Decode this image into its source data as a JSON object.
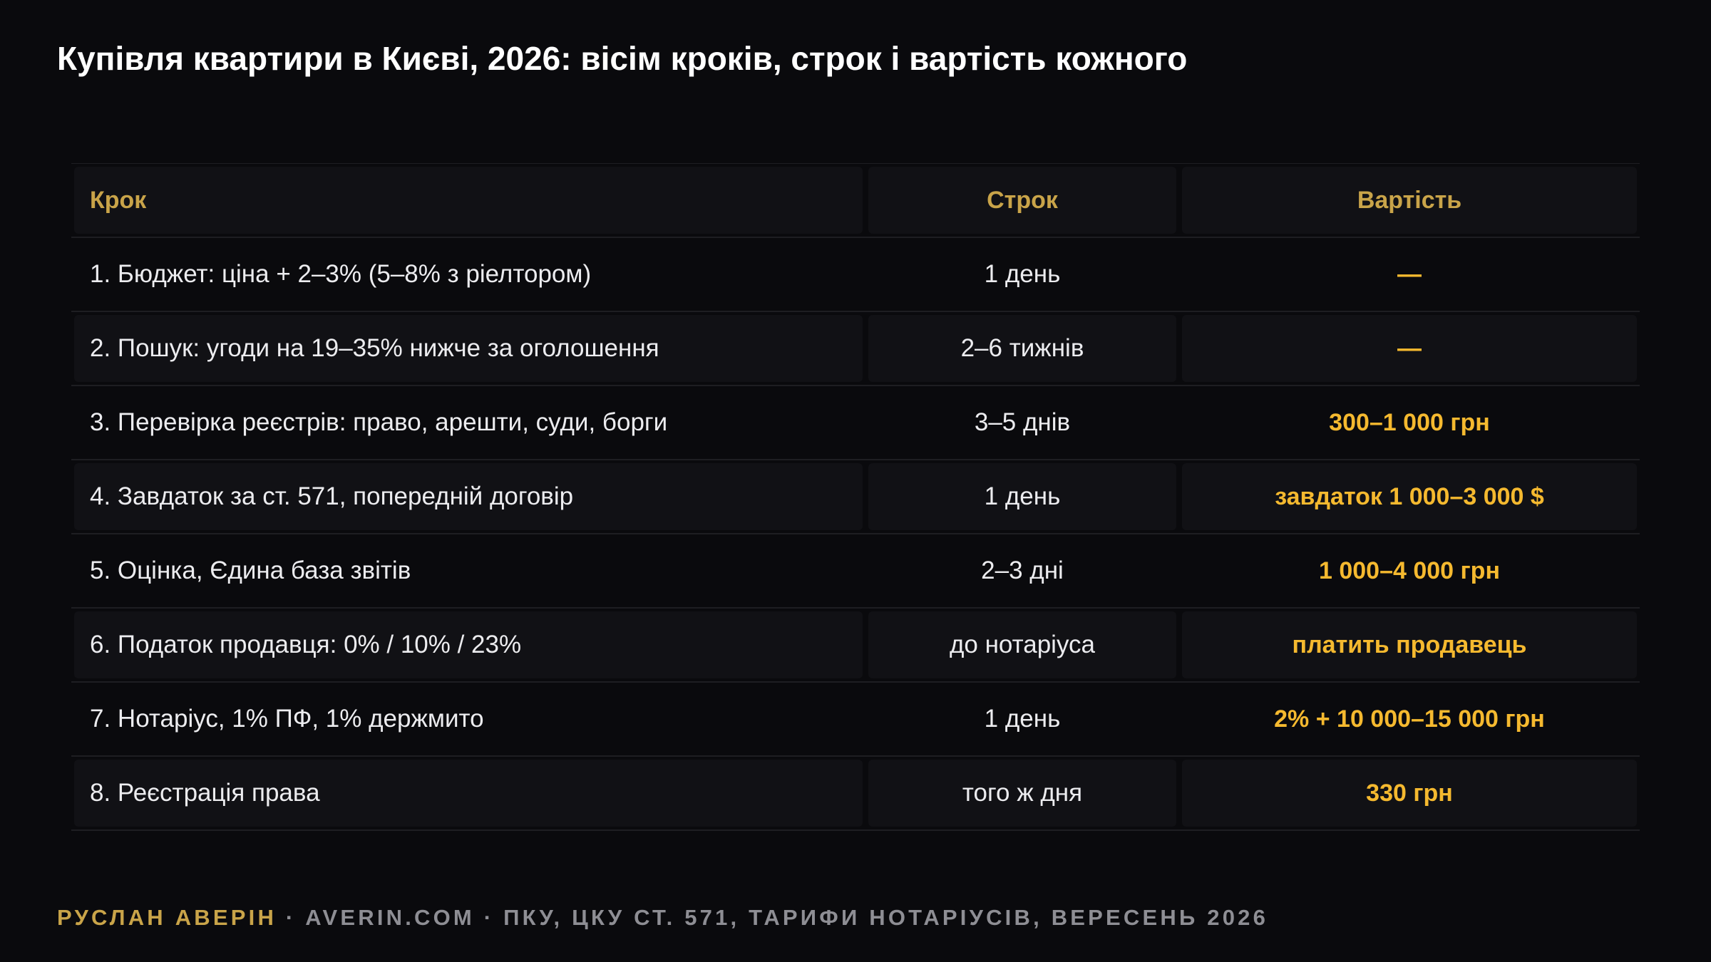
{
  "title": "Купівля квартири в Києві, 2026: вісім кроків, строк і вартість кожного",
  "table": {
    "headers": {
      "step": "Крок",
      "term": "Строк",
      "cost": "Вартість"
    },
    "rows": [
      {
        "step": "1. Бюджет: ціна + 2–3% (5–8% з ріелтором)",
        "term": "1 день",
        "cost": "—"
      },
      {
        "step": "2. Пошук: угоди на 19–35% нижче за оголошення",
        "term": "2–6 тижнів",
        "cost": "—"
      },
      {
        "step": "3. Перевірка реєстрів: право, арешти, суди, борги",
        "term": "3–5 днів",
        "cost": "300–1 000 грн"
      },
      {
        "step": "4. Завдаток за ст. 571, попередній договір",
        "term": "1 день",
        "cost": "завдаток 1 000–3 000 $"
      },
      {
        "step": "5. Оцінка, Єдина база звітів",
        "term": "2–3 дні",
        "cost": "1 000–4 000 грн"
      },
      {
        "step": "6. Податок продавця: 0% / 10% / 23%",
        "term": "до нотаріуса",
        "cost": "платить продавець"
      },
      {
        "step": "7. Нотаріус, 1% ПФ, 1% держмито",
        "term": "1 день",
        "cost": "2% + 10 000–15 000 грн"
      },
      {
        "step": "8. Реєстрація права",
        "term": "того ж дня",
        "cost": "330 грн"
      }
    ]
  },
  "footer": {
    "author": "РУСЛАН АВЕРІН",
    "rest": " · AVERIN.COM · ПКУ, ЦКУ СТ. 571, ТАРИФИ НОТАРІУСІВ, ВЕРЕСЕНЬ 2026"
  },
  "colors": {
    "background": "#0a0a0d",
    "header_text": "#c9a449",
    "cost_text": "#f5b92f",
    "body_text": "#ececef",
    "footer_text": "#8e8e94"
  }
}
